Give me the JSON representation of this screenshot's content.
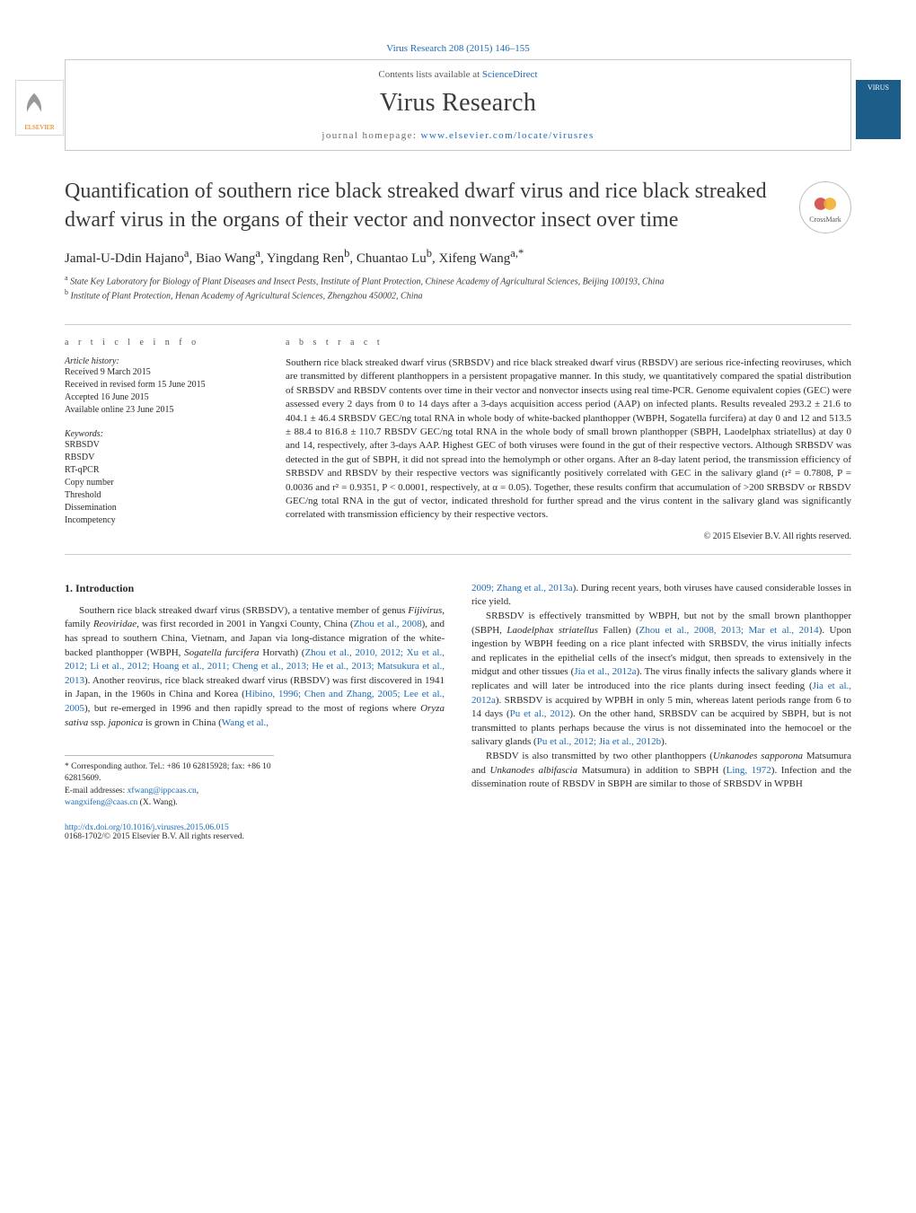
{
  "citation": "Virus Research 208 (2015) 146–155",
  "header": {
    "contents_line_pre": "Contents lists available at ",
    "contents_link": "ScienceDirect",
    "journal_name": "Virus Research",
    "homepage_pre": "journal homepage: ",
    "homepage_link": "www.elsevier.com/locate/virusres",
    "publisher_logo": "ELSEVIER",
    "cover_label": "VIRUS"
  },
  "article": {
    "title": "Quantification of southern rice black streaked dwarf virus and rice black streaked dwarf virus in the organs of their vector and nonvector insect over time",
    "crossmark_label": "CrossMark",
    "authors_html": "Jamal-U-Ddin Hajano<sup>a</sup>, Biao Wang<sup>a</sup>, Yingdang Ren<sup>b</sup>, Chuantao Lu<sup>b</sup>, Xifeng Wang<sup>a,*</sup>",
    "affiliations": {
      "a": "State Key Laboratory for Biology of Plant Diseases and Insect Pests, Institute of Plant Protection, Chinese Academy of Agricultural Sciences, Beijing 100193, China",
      "b": "Institute of Plant Protection, Henan Academy of Agricultural Sciences, Zhengzhou 450002, China"
    }
  },
  "meta": {
    "article_info_heading": "a r t i c l e   i n f o",
    "history_heading": "Article history:",
    "history": [
      "Received 9 March 2015",
      "Received in revised form 15 June 2015",
      "Accepted 16 June 2015",
      "Available online 23 June 2015"
    ],
    "keywords_heading": "Keywords:",
    "keywords": [
      "SRBSDV",
      "RBSDV",
      "RT-qPCR",
      "Copy number",
      "Threshold",
      "Dissemination",
      "Incompetency"
    ],
    "abstract_heading": "a b s t r a c t",
    "abstract": "Southern rice black streaked dwarf virus (SRBSDV) and rice black streaked dwarf virus (RBSDV) are serious rice-infecting reoviruses, which are transmitted by different planthoppers in a persistent propagative manner. In this study, we quantitatively compared the spatial distribution of SRBSDV and RBSDV contents over time in their vector and nonvector insects using real time-PCR. Genome equivalent copies (GEC) were assessed every 2 days from 0 to 14 days after a 3-days acquisition access period (AAP) on infected plants. Results revealed 293.2 ± 21.6 to 404.1 ± 46.4 SRBSDV GEC/ng total RNA in whole body of white-backed planthopper (WBPH, Sogatella furcifera) at day 0 and 12 and 513.5 ± 88.4 to 816.8 ± 110.7 RBSDV GEC/ng total RNA in the whole body of small brown planthopper (SBPH, Laodelphax striatellus) at day 0 and 14, respectively, after 3-days AAP. Highest GEC of both viruses were found in the gut of their respective vectors. Although SRBSDV was detected in the gut of SBPH, it did not spread into the hemolymph or other organs. After an 8-day latent period, the transmission efficiency of SRBSDV and RBSDV by their respective vectors was significantly positively correlated with GEC in the salivary gland (r² = 0.7808, P = 0.0036 and r² = 0.9351, P < 0.0001, respectively, at α = 0.05). Together, these results confirm that accumulation of >200 SRBSDV or RBSDV GEC/ng total RNA in the gut of vector, indicated threshold for further spread and the virus content in the salivary gland was significantly correlated with transmission efficiency by their respective vectors.",
    "copyright": "© 2015 Elsevier B.V. All rights reserved."
  },
  "body": {
    "intro_heading": "1. Introduction",
    "col1_p1": "Southern rice black streaked dwarf virus (SRBSDV), a tentative member of genus <span class=\"italic\">Fijivirus</span>, family <span class=\"italic\">Reoviridae</span>, was first recorded in 2001 in Yangxi County, China (<a class=\"ref-link\" href=\"#\">Zhou et al., 2008</a>), and has spread to southern China, Vietnam, and Japan via long-distance migration of the white-backed planthopper (WBPH, <span class=\"italic\">Sogatella furcifera</span> Horvath) (<a class=\"ref-link\" href=\"#\">Zhou et al., 2010, 2012; Xu et al., 2012; Li et al., 2012; Hoang et al., 2011; Cheng et al., 2013; He et al., 2013; Matsukura et al., 2013</a>). Another reovirus, rice black streaked dwarf virus (RBSDV) was first discovered in 1941 in Japan, in the 1960s in China and Korea (<a class=\"ref-link\" href=\"#\">Hibino, 1996; Chen and Zhang, 2005; Lee et al., 2005</a>), but re-emerged in 1996 and then rapidly spread to the most of regions where <span class=\"italic\">Oryza sativa</span> ssp. <span class=\"italic\">japonica</span> is grown in China (<a class=\"ref-link\" href=\"#\">Wang et al.,</a>",
    "col2_p1": "<a class=\"ref-link\" href=\"#\">2009; Zhang et al., 2013a</a>). During recent years, both viruses have caused considerable losses in rice yield.",
    "col2_p2": "SRBSDV is effectively transmitted by WBPH, but not by the small brown planthopper (SBPH, <span class=\"italic\">Laodelphax striatellus</span> Fallen) (<a class=\"ref-link\" href=\"#\">Zhou et al., 2008, 2013; Mar et al., 2014</a>). Upon ingestion by WBPH feeding on a rice plant infected with SRBSDV, the virus initially infects and replicates in the epithelial cells of the insect's midgut, then spreads to extensively in the midgut and other tissues (<a class=\"ref-link\" href=\"#\">Jia et al., 2012a</a>). The virus finally infects the salivary glands where it replicates and will later be introduced into the rice plants during insect feeding (<a class=\"ref-link\" href=\"#\">Jia et al., 2012a</a>). SRBSDV is acquired by WPBH in only 5 min, whereas latent periods range from 6 to 14 days (<a class=\"ref-link\" href=\"#\">Pu et al., 2012</a>). On the other hand, SRBSDV can be acquired by SBPH, but is not transmitted to plants perhaps because the virus is not disseminated into the hemocoel or the salivary glands (<a class=\"ref-link\" href=\"#\">Pu et al., 2012; Jia et al., 2012b</a>).",
    "col2_p3": "RBSDV is also transmitted by two other planthoppers (<span class=\"italic\">Unkanodes sapporona</span> Matsumura and <span class=\"italic\">Unkanodes albifascia</span> Matsumura) in addition to SBPH (<a class=\"ref-link\" href=\"#\">Ling, 1972</a>). Infection and the dissemination route of RBSDV in SBPH are similar to those of SRBSDV in WPBH"
  },
  "footnotes": {
    "corr": "* Corresponding author. Tel.: +86 10 62815928; fax: +86 10 62815609.",
    "email_pre": "E-mail addresses: ",
    "email1": "xfwang@ippcaas.cn",
    "sep": ", ",
    "email2": "wangxifeng@caas.cn",
    "email_suffix": " (X. Wang)."
  },
  "footer": {
    "doi": "http://dx.doi.org/10.1016/j.virusres.2015.06.015",
    "issn_line": "0168-1702/© 2015 Elsevier B.V. All rights reserved."
  },
  "colors": {
    "link": "#1a6bb8",
    "text": "#2a2a2a",
    "border": "#c8c8c8",
    "logo_orange": "#e37000",
    "cover_blue": "#1d5d8a"
  }
}
